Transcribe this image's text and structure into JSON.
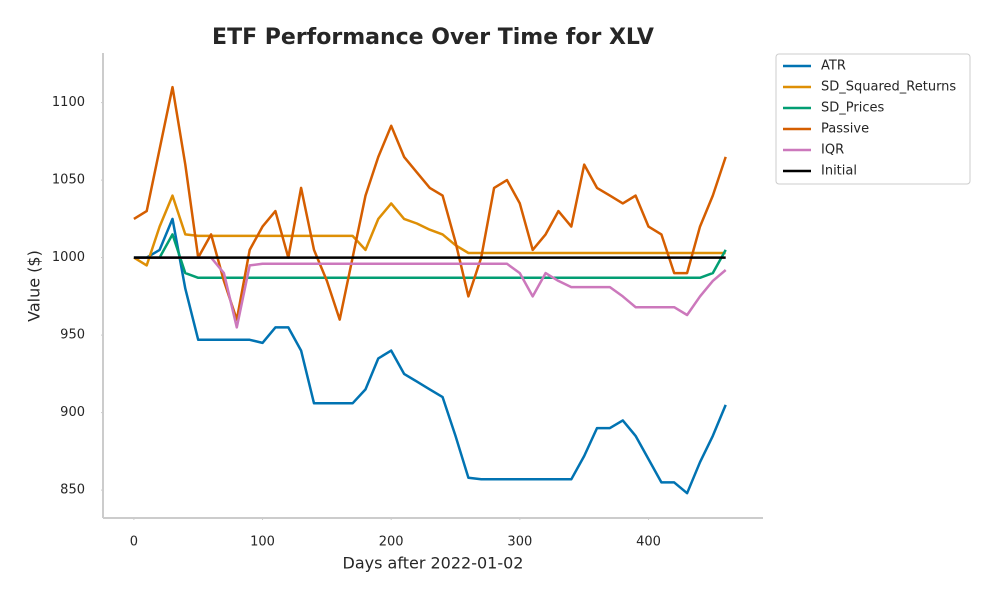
{
  "chart_data": {
    "type": "line",
    "title": "ETF Performance Over Time for XLV",
    "x_label": "Days after 2022-01-02",
    "y_label": "Value ($)",
    "x": [
      0,
      10,
      20,
      30,
      40,
      50,
      60,
      70,
      80,
      90,
      100,
      110,
      120,
      130,
      140,
      150,
      160,
      170,
      180,
      190,
      200,
      210,
      220,
      230,
      240,
      250,
      260,
      270,
      280,
      290,
      300,
      310,
      320,
      330,
      340,
      350,
      360,
      370,
      380,
      390,
      400,
      410,
      420,
      430,
      440,
      450,
      460
    ],
    "series": [
      {
        "name": "ATR",
        "color": "#0173b2",
        "values": [
          1000,
          1000,
          1005,
          1025,
          980,
          947,
          947,
          947,
          947,
          947,
          945,
          955,
          955,
          940,
          906,
          906,
          906,
          906,
          915,
          935,
          940,
          925,
          920,
          915,
          910,
          885,
          858,
          857,
          857,
          857,
          857,
          857,
          857,
          857,
          857,
          872,
          890,
          890,
          895,
          885,
          870,
          855,
          855,
          848,
          868,
          885,
          905
        ]
      },
      {
        "name": "SD_Squared_Returns",
        "color": "#de8f05",
        "values": [
          1000,
          995,
          1020,
          1040,
          1015,
          1014,
          1014,
          1014,
          1014,
          1014,
          1014,
          1014,
          1014,
          1014,
          1014,
          1014,
          1014,
          1014,
          1005,
          1025,
          1035,
          1025,
          1022,
          1018,
          1015,
          1008,
          1003,
          1003,
          1003,
          1003,
          1003,
          1003,
          1003,
          1003,
          1003,
          1003,
          1003,
          1003,
          1003,
          1003,
          1003,
          1003,
          1003,
          1003,
          1003,
          1003,
          1003
        ]
      },
      {
        "name": "SD_Prices",
        "color": "#029e73",
        "values": [
          1000,
          1000,
          1000,
          1015,
          990,
          987,
          987,
          987,
          987,
          987,
          987,
          987,
          987,
          987,
          987,
          987,
          987,
          987,
          987,
          987,
          987,
          987,
          987,
          987,
          987,
          987,
          987,
          987,
          987,
          987,
          987,
          987,
          987,
          987,
          987,
          987,
          987,
          987,
          987,
          987,
          987,
          987,
          987,
          987,
          987,
          990,
          1005
        ]
      },
      {
        "name": "Passive",
        "color": "#d55e00",
        "values": [
          1025,
          1030,
          1070,
          1110,
          1060,
          1000,
          1015,
          985,
          960,
          1005,
          1020,
          1030,
          1000,
          1045,
          1005,
          985,
          960,
          1000,
          1040,
          1065,
          1085,
          1065,
          1055,
          1045,
          1040,
          1010,
          975,
          1000,
          1045,
          1050,
          1035,
          1005,
          1015,
          1030,
          1020,
          1060,
          1045,
          1040,
          1035,
          1040,
          1020,
          1015,
          990,
          990,
          1020,
          1040,
          1065
        ]
      },
      {
        "name": "IQR",
        "color": "#cc78bc",
        "values": [
          1000,
          1000,
          1000,
          1000,
          1000,
          1000,
          1000,
          990,
          955,
          995,
          996,
          996,
          996,
          996,
          996,
          996,
          996,
          996,
          996,
          996,
          996,
          996,
          996,
          996,
          996,
          996,
          996,
          996,
          996,
          996,
          990,
          975,
          990,
          985,
          981,
          981,
          981,
          981,
          975,
          968,
          968,
          968,
          968,
          963,
          975,
          985,
          992
        ]
      },
      {
        "name": "Initial",
        "color": "#000000",
        "values": [
          1000,
          1000,
          1000,
          1000,
          1000,
          1000,
          1000,
          1000,
          1000,
          1000,
          1000,
          1000,
          1000,
          1000,
          1000,
          1000,
          1000,
          1000,
          1000,
          1000,
          1000,
          1000,
          1000,
          1000,
          1000,
          1000,
          1000,
          1000,
          1000,
          1000,
          1000,
          1000,
          1000,
          1000,
          1000,
          1000,
          1000,
          1000,
          1000,
          1000,
          1000,
          1000,
          1000,
          1000,
          1000,
          1000,
          1000
        ]
      }
    ],
    "xlim": [
      -24,
      489
    ],
    "ylim": [
      832,
      1132
    ],
    "xticks": [
      0,
      100,
      200,
      300,
      400
    ],
    "yticks": [
      850,
      900,
      950,
      1000,
      1050,
      1100
    ],
    "grid": false,
    "legend": "outside upper right"
  }
}
